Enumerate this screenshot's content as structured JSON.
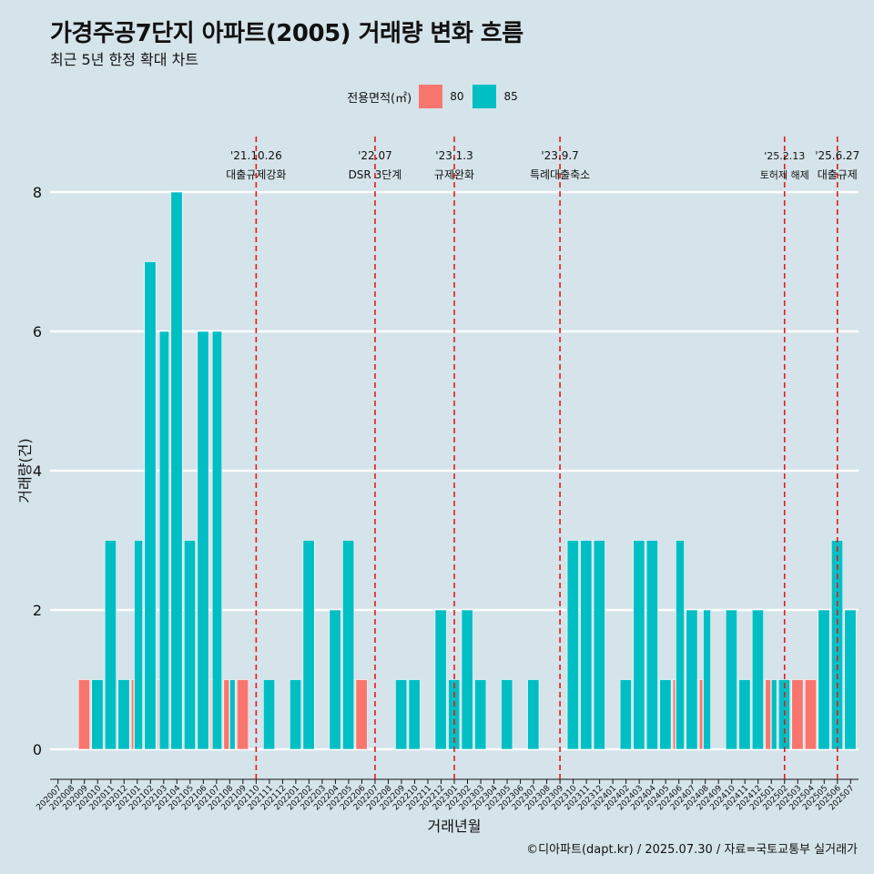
{
  "chart_data": {
    "type": "bar",
    "title": "가경주공7단지 아파트(2005) 거래량 변화 흐름",
    "subtitle": "최근 5년 한정 확대 차트",
    "xlabel": "거래년월",
    "ylabel": "거래량(건)",
    "caption": "©디아파트(dapt.kr) / 2025.07.30 / 자료=국토교통부 실거래가",
    "legend_title": "전용면적(㎡)",
    "legend_position": "top",
    "ylim": [
      0,
      8
    ],
    "yticks": [
      "0",
      "2",
      "4",
      "6",
      "8"
    ],
    "grid": true,
    "categories": [
      "202007",
      "202008",
      "202009",
      "202010",
      "202011",
      "202012",
      "202101",
      "202102",
      "202103",
      "202104",
      "202105",
      "202106",
      "202107",
      "202108",
      "202109",
      "202110",
      "202111",
      "202112",
      "202201",
      "202202",
      "202203",
      "202204",
      "202205",
      "202206",
      "202207",
      "202208",
      "202209",
      "202210",
      "202211",
      "202212",
      "202301",
      "202302",
      "202303",
      "202304",
      "202305",
      "202306",
      "202307",
      "202308",
      "202309",
      "202310",
      "202311",
      "202312",
      "202401",
      "202402",
      "202403",
      "202404",
      "202405",
      "202406",
      "202407",
      "202408",
      "202409",
      "202410",
      "202411",
      "202412",
      "202501",
      "202502",
      "202503",
      "202504",
      "202505",
      "202506",
      "202507"
    ],
    "series": [
      {
        "name": "80",
        "color": "#f8766d",
        "values": [
          0,
          0,
          1,
          0,
          0,
          0,
          1,
          0,
          1,
          0,
          0,
          0,
          1,
          1,
          1,
          0,
          0,
          0,
          0,
          0,
          0,
          0,
          0,
          1,
          0,
          0,
          0,
          0,
          0,
          0,
          0,
          0,
          0,
          0,
          0,
          0,
          0,
          0,
          0,
          0,
          0,
          0,
          0,
          0,
          0,
          0,
          0,
          1,
          0,
          1,
          0,
          0,
          0,
          0,
          1,
          0,
          1,
          1,
          0,
          0,
          0
        ]
      },
      {
        "name": "85",
        "color": "#00bfc4",
        "values": [
          0,
          0,
          0,
          1,
          3,
          1,
          3,
          7,
          6,
          8,
          3,
          6,
          6,
          1,
          0,
          0,
          1,
          0,
          1,
          3,
          0,
          2,
          3,
          0,
          0,
          0,
          1,
          1,
          0,
          2,
          1,
          2,
          1,
          0,
          1,
          0,
          1,
          0,
          0,
          3,
          3,
          3,
          0,
          1,
          3,
          3,
          1,
          3,
          2,
          2,
          0,
          2,
          1,
          2,
          1,
          1,
          0,
          0,
          2,
          3,
          2
        ]
      }
    ],
    "events": [
      {
        "date": "'21.10.26",
        "label": "대출규제강화",
        "at": "202110"
      },
      {
        "date": "'22.07",
        "label": "DSR 3단계",
        "at": "202207"
      },
      {
        "date": "'23.1.3",
        "label": "규제완화",
        "at": "202301"
      },
      {
        "date": "'23.9.7",
        "label": "특례대출축소",
        "at": "202309"
      },
      {
        "date": "'25.2.13",
        "label": "토허제 해제",
        "at": "202502"
      },
      {
        "date": "'25.6.27",
        "label": "대출규제",
        "at": "202506"
      }
    ]
  }
}
